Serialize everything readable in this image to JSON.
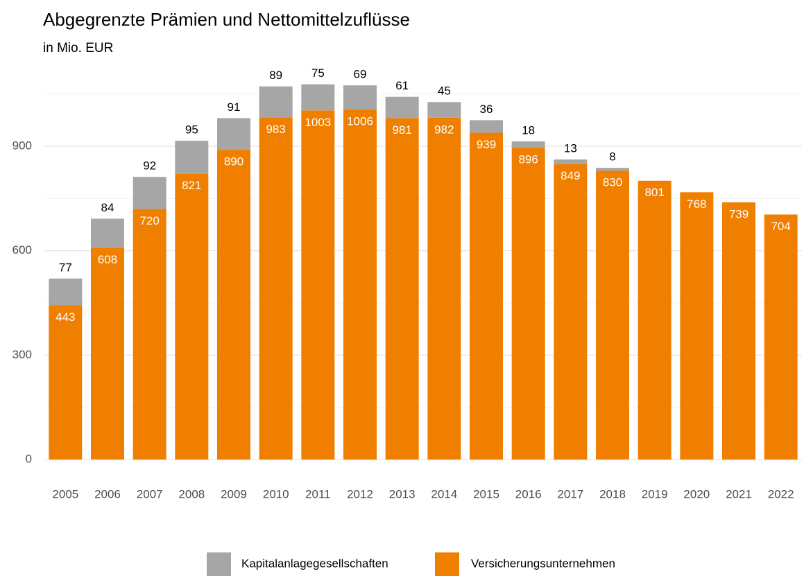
{
  "chart_data": {
    "type": "stacked_bar",
    "title": "Abgegrenzte Prämien und Nettomittelzuflüsse",
    "subtitle": "in Mio. EUR",
    "categories": [
      "2005",
      "2006",
      "2007",
      "2008",
      "2009",
      "2010",
      "2011",
      "2012",
      "2013",
      "2014",
      "2015",
      "2016",
      "2017",
      "2018",
      "2019",
      "2020",
      "2021",
      "2022"
    ],
    "series": [
      {
        "name": "Versicherungsunternehmen",
        "color": "#f07f00",
        "label_color": "#ffffff",
        "values": [
          443,
          608,
          720,
          821,
          890,
          983,
          1003,
          1006,
          981,
          982,
          939,
          896,
          849,
          830,
          801,
          768,
          739,
          704
        ]
      },
      {
        "name": "Kapitalanlagegesellschaften",
        "color": "#a6a6a6",
        "label_color": "#000000",
        "values": [
          77,
          84,
          92,
          95,
          91,
          89,
          75,
          69,
          61,
          45,
          36,
          18,
          13,
          8,
          null,
          null,
          null,
          null
        ]
      }
    ],
    "legend_order": [
      1,
      0
    ],
    "ylim": [
      0,
      1100
    ],
    "yticks": [
      0,
      300,
      600,
      900
    ],
    "minor_yticks": [
      150,
      450,
      750,
      1050
    ],
    "grid": true
  }
}
